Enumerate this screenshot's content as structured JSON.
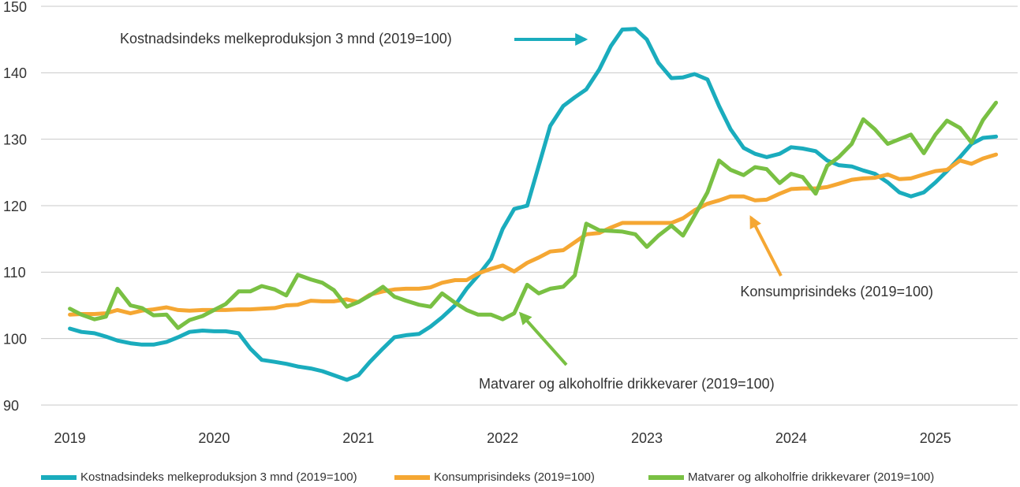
{
  "chart_data": {
    "type": "line",
    "x": [
      2019,
      2019.08,
      2019.17,
      2019.25,
      2019.33,
      2019.42,
      2019.5,
      2019.58,
      2019.67,
      2019.75,
      2019.83,
      2019.92,
      2020,
      2020.08,
      2020.17,
      2020.25,
      2020.33,
      2020.42,
      2020.5,
      2020.58,
      2020.67,
      2020.75,
      2020.83,
      2020.92,
      2021,
      2021.08,
      2021.17,
      2021.25,
      2021.33,
      2021.42,
      2021.5,
      2021.58,
      2021.67,
      2021.75,
      2021.83,
      2021.92,
      2022,
      2022.08,
      2022.17,
      2022.25,
      2022.33,
      2022.42,
      2022.5,
      2022.58,
      2022.67,
      2022.75,
      2022.83,
      2022.92,
      2023,
      2023.08,
      2023.17,
      2023.25,
      2023.33,
      2023.42,
      2023.5,
      2023.58,
      2023.67,
      2023.75,
      2023.83,
      2023.92,
      2024,
      2024.08,
      2024.17,
      2024.25,
      2024.33,
      2024.42,
      2024.5,
      2024.58,
      2024.67,
      2024.75,
      2024.83,
      2024.92,
      2025,
      2025.08,
      2025.17,
      2025.25,
      2025.33,
      2025.42
    ],
    "series": [
      {
        "name": "Kostnadsindeks melkeproduksjon 3 mnd (2019=100)",
        "color": "#1aacbd",
        "values": [
          101.5,
          101,
          100.8,
          100.3,
          99.7,
          99.3,
          99.1,
          99.1,
          99.5,
          100.2,
          101,
          101.2,
          101.1,
          101.1,
          100.8,
          98.5,
          96.8,
          96.5,
          96.2,
          95.8,
          95.5,
          95.1,
          94.5,
          93.8,
          94.5,
          96.5,
          98.5,
          100.2,
          100.5,
          100.7,
          101.8,
          103.2,
          105,
          107.5,
          109.5,
          112,
          116.5,
          119.5,
          120,
          126,
          132,
          135,
          136.3,
          137.5,
          140.5,
          144,
          146.5,
          146.6,
          145,
          141.5,
          139.2,
          139.3,
          139.8,
          139,
          135,
          131.5,
          128.7,
          127.8,
          127.3,
          127.8,
          128.8,
          128.6,
          128.2,
          126.8,
          126.1,
          125.9,
          125.3,
          124.8,
          123.5,
          122,
          121.4,
          122,
          123.5,
          125.2,
          127.3,
          129.3,
          130.2,
          130.4
        ]
      },
      {
        "name": "Konsumprisindeks (2019=100)",
        "color": "#f5a733",
        "values": [
          103.6,
          103.7,
          103.7,
          103.8,
          104.3,
          103.8,
          104.2,
          104.4,
          104.7,
          104.3,
          104.2,
          104.3,
          104.3,
          104.3,
          104.4,
          104.4,
          104.5,
          104.6,
          105,
          105.1,
          105.7,
          105.6,
          105.6,
          105.9,
          105.5,
          106.6,
          107.1,
          107.4,
          107.5,
          107.5,
          107.7,
          108.4,
          108.8,
          108.8,
          109.8,
          110.5,
          111,
          110.1,
          111.4,
          112.2,
          113.1,
          113.3,
          114.5,
          115.7,
          115.9,
          116.7,
          117.4,
          117.4,
          117.4,
          117.4,
          117.4,
          118.1,
          119.3,
          120.3,
          120.8,
          121.4,
          121.4,
          120.8,
          120.9,
          121.8,
          122.5,
          122.6,
          122.6,
          122.8,
          123.3,
          123.9,
          124.1,
          124.2,
          124.7,
          124,
          124.1,
          124.7,
          125.2,
          125.4,
          126.8,
          126.3,
          127.1,
          127.7
        ]
      },
      {
        "name": "Matvarer og alkoholfrie drikkevarer (2019=100)",
        "color": "#79c043",
        "values": [
          104.5,
          103.6,
          102.9,
          103.3,
          107.5,
          105,
          104.6,
          103.5,
          103.6,
          101.6,
          102.8,
          103.4,
          104.3,
          105.2,
          107.1,
          107.1,
          107.9,
          107.4,
          106.5,
          109.6,
          108.9,
          108.4,
          107.3,
          104.8,
          105.5,
          106.5,
          107.8,
          106.3,
          105.7,
          105.1,
          104.8,
          106.8,
          105.4,
          104.3,
          103.6,
          103.6,
          102.9,
          103.8,
          108.1,
          106.8,
          107.5,
          107.8,
          109.5,
          117.3,
          116.3,
          116.2,
          116.1,
          115.7,
          113.8,
          115.5,
          117,
          115.5,
          118.5,
          122,
          126.8,
          125.4,
          124.6,
          125.8,
          125.5,
          123.4,
          124.8,
          124.3,
          121.8,
          126,
          127.3,
          129.3,
          133,
          131.5,
          129.3,
          130,
          130.7,
          127.9,
          130.7,
          132.8,
          131.7,
          129.5,
          132.9,
          135.5
        ]
      }
    ],
    "xlim": [
      2018.8,
      2025.57
    ],
    "xticks": [
      2019,
      2020,
      2021,
      2022,
      2023,
      2024,
      2025
    ],
    "ylim": [
      90,
      150
    ],
    "yticks": [
      90,
      100,
      110,
      120,
      130,
      140,
      150
    ],
    "grid": true,
    "legend": "bottom",
    "annotations": [
      "Kostnadsindeks melkeproduksjon 3 mnd (2019=100)",
      "Konsumprisindeks (2019=100)",
      "Matvarer og alkoholfrie drikkevarer (2019=100)"
    ]
  }
}
